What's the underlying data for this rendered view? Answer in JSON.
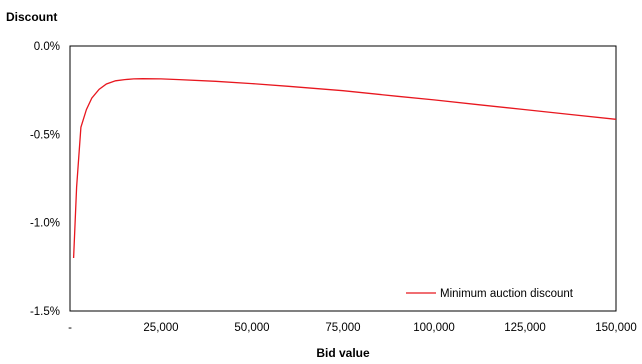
{
  "chart_data": {
    "type": "line",
    "title": "",
    "ylabel": "Discount",
    "xlabel": "Bid value",
    "xlim": [
      0,
      150000
    ],
    "ylim": [
      -1.5,
      0.0
    ],
    "x_ticks": [
      0,
      25000,
      50000,
      75000,
      100000,
      125000,
      150000
    ],
    "x_tick_labels": [
      "-",
      "25,000",
      "50,000",
      "75,000",
      "100,000",
      "125,000",
      "150,000"
    ],
    "y_ticks": [
      0.0,
      -0.5,
      -1.0,
      -1.5
    ],
    "y_tick_labels": [
      "0.0%",
      "-0.5%",
      "-1.0%",
      "-1.5%"
    ],
    "grid": false,
    "legend_position": "bottom-right",
    "colors": {
      "series": "#e8171f",
      "axis": "#000000"
    },
    "series": [
      {
        "name": "Minimum auction discount",
        "x": [
          1000,
          1800,
          3000,
          4500,
          6000,
          8000,
          10000,
          12500,
          15000,
          17500,
          20000,
          25000,
          30000,
          40000,
          50000,
          60000,
          75000,
          90000,
          100000,
          112500,
          125000,
          137500,
          150000
        ],
        "y": [
          -1.2,
          -0.8,
          -0.46,
          -0.36,
          -0.295,
          -0.245,
          -0.215,
          -0.197,
          -0.19,
          -0.186,
          -0.185,
          -0.186,
          -0.19,
          -0.2,
          -0.213,
          -0.228,
          -0.253,
          -0.285,
          -0.305,
          -0.333,
          -0.36,
          -0.388,
          -0.415
        ]
      }
    ]
  }
}
